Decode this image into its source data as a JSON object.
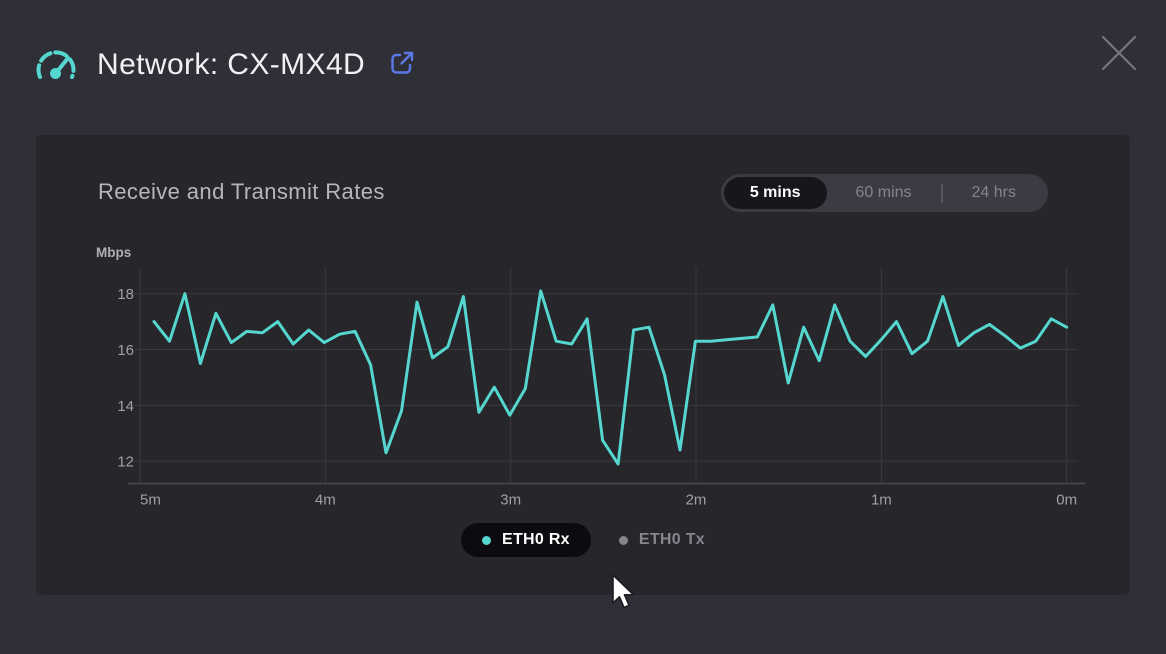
{
  "header": {
    "title": "Network: CX-MX4D"
  },
  "icons": {
    "title_icon": "gauge-icon",
    "open_external": "external-link-icon",
    "close": "close-icon",
    "cursor": "mouse-arrow-cursor"
  },
  "card": {
    "title": "Receive and Transmit Rates",
    "time_ranges": {
      "options": [
        "5 mins",
        "60 mins",
        "24 hrs"
      ],
      "selected": "5 mins"
    }
  },
  "chart_data": {
    "type": "line",
    "title": "Receive and Transmit Rates",
    "ylabel": "Mbps",
    "x_unit": "minutes ago",
    "x_ticks": [
      "5m",
      "4m",
      "3m",
      "2m",
      "1m",
      "0m"
    ],
    "y_ticks": [
      18,
      16,
      14,
      12
    ],
    "ylim": [
      11.2,
      18.85
    ],
    "grid": true,
    "interval_seconds": 5,
    "legend_position": "bottom",
    "legend": [
      {
        "label": "ETH0 Rx",
        "active": true,
        "color": "#55d6cf"
      },
      {
        "label": "ETH0 Tx",
        "active": false,
        "color": "#85868e"
      }
    ],
    "series": [
      {
        "name": "ETH0 Rx",
        "color": "#55d6cf",
        "visible": true,
        "values": [
          17.0,
          16.3,
          18.0,
          15.5,
          17.3,
          16.25,
          16.65,
          16.6,
          17.0,
          16.2,
          16.7,
          16.25,
          16.55,
          16.65,
          15.45,
          12.3,
          13.8,
          17.7,
          15.7,
          16.1,
          17.9,
          13.75,
          14.65,
          13.65,
          14.6,
          18.1,
          16.3,
          16.2,
          17.1,
          12.75,
          11.9,
          16.7,
          16.8,
          15.1,
          12.4,
          16.3,
          16.3,
          16.35,
          16.4,
          16.45,
          17.6,
          14.8,
          16.8,
          15.6,
          17.6,
          16.3,
          15.75,
          16.35,
          17.0,
          15.85,
          16.3,
          17.9,
          16.15,
          16.6,
          16.9,
          16.5,
          16.05,
          16.3,
          17.1,
          16.8
        ]
      },
      {
        "name": "ETH0 Tx",
        "color": "#85868e",
        "visible": false,
        "values": []
      }
    ]
  },
  "colors": {
    "page_bg": "#2f2f37",
    "card_bg": "#26262b",
    "accent_teal": "#55d6cf",
    "accent_blue": "#5a78e6",
    "grid": "#3a3a43",
    "axis": "#4b4b54",
    "tick_text": "#9fa0a7",
    "text_primary": "#f1f1f4",
    "text_muted": "#85868e",
    "pill_dark": "#16161b",
    "legend_pill": "#0c0c10"
  }
}
